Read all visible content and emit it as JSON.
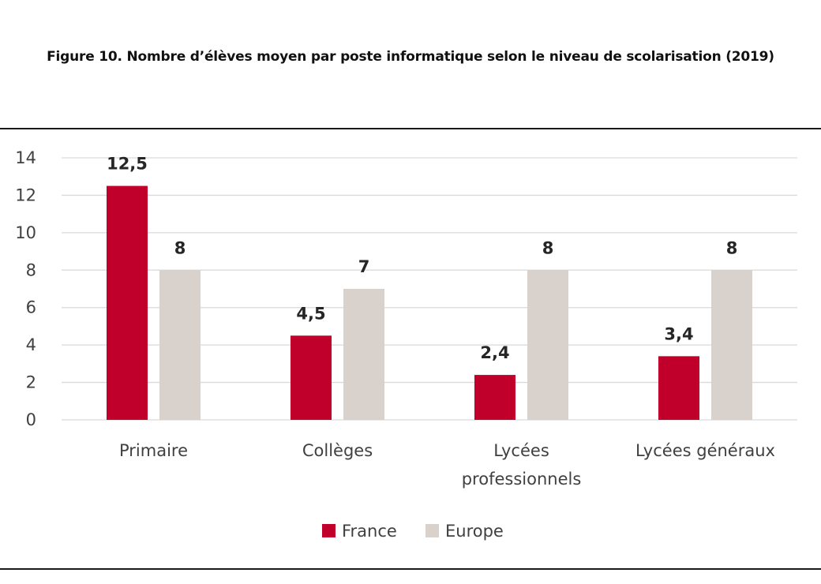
{
  "figure": {
    "title": "Figure 10. Nombre d’élèves moyen par poste informatique selon le niveau de scolarisation (2019)"
  },
  "colors": {
    "france": "#c0002a",
    "europe": "#d9d1cb",
    "grid": "#d9d9d9",
    "rule": "#1a1a1a"
  },
  "chart_data": {
    "type": "bar",
    "categories": [
      [
        "Primaire"
      ],
      [
        "Collèges"
      ],
      [
        "Lycées",
        "professionnels"
      ],
      [
        "Lycées généraux"
      ]
    ],
    "series": [
      {
        "name": "France",
        "values": [
          12.5,
          4.5,
          2.4,
          3.4
        ],
        "labels": [
          "12,5",
          "4,5",
          "2,4",
          "3,4"
        ]
      },
      {
        "name": "Europe",
        "values": [
          8,
          7,
          8,
          8
        ],
        "labels": [
          "8",
          "7",
          "8",
          "8"
        ]
      }
    ],
    "ylim": [
      0,
      14
    ],
    "yticks": [
      0,
      2,
      4,
      6,
      8,
      10,
      12,
      14
    ],
    "grid": true,
    "legend": "bottom-center"
  }
}
